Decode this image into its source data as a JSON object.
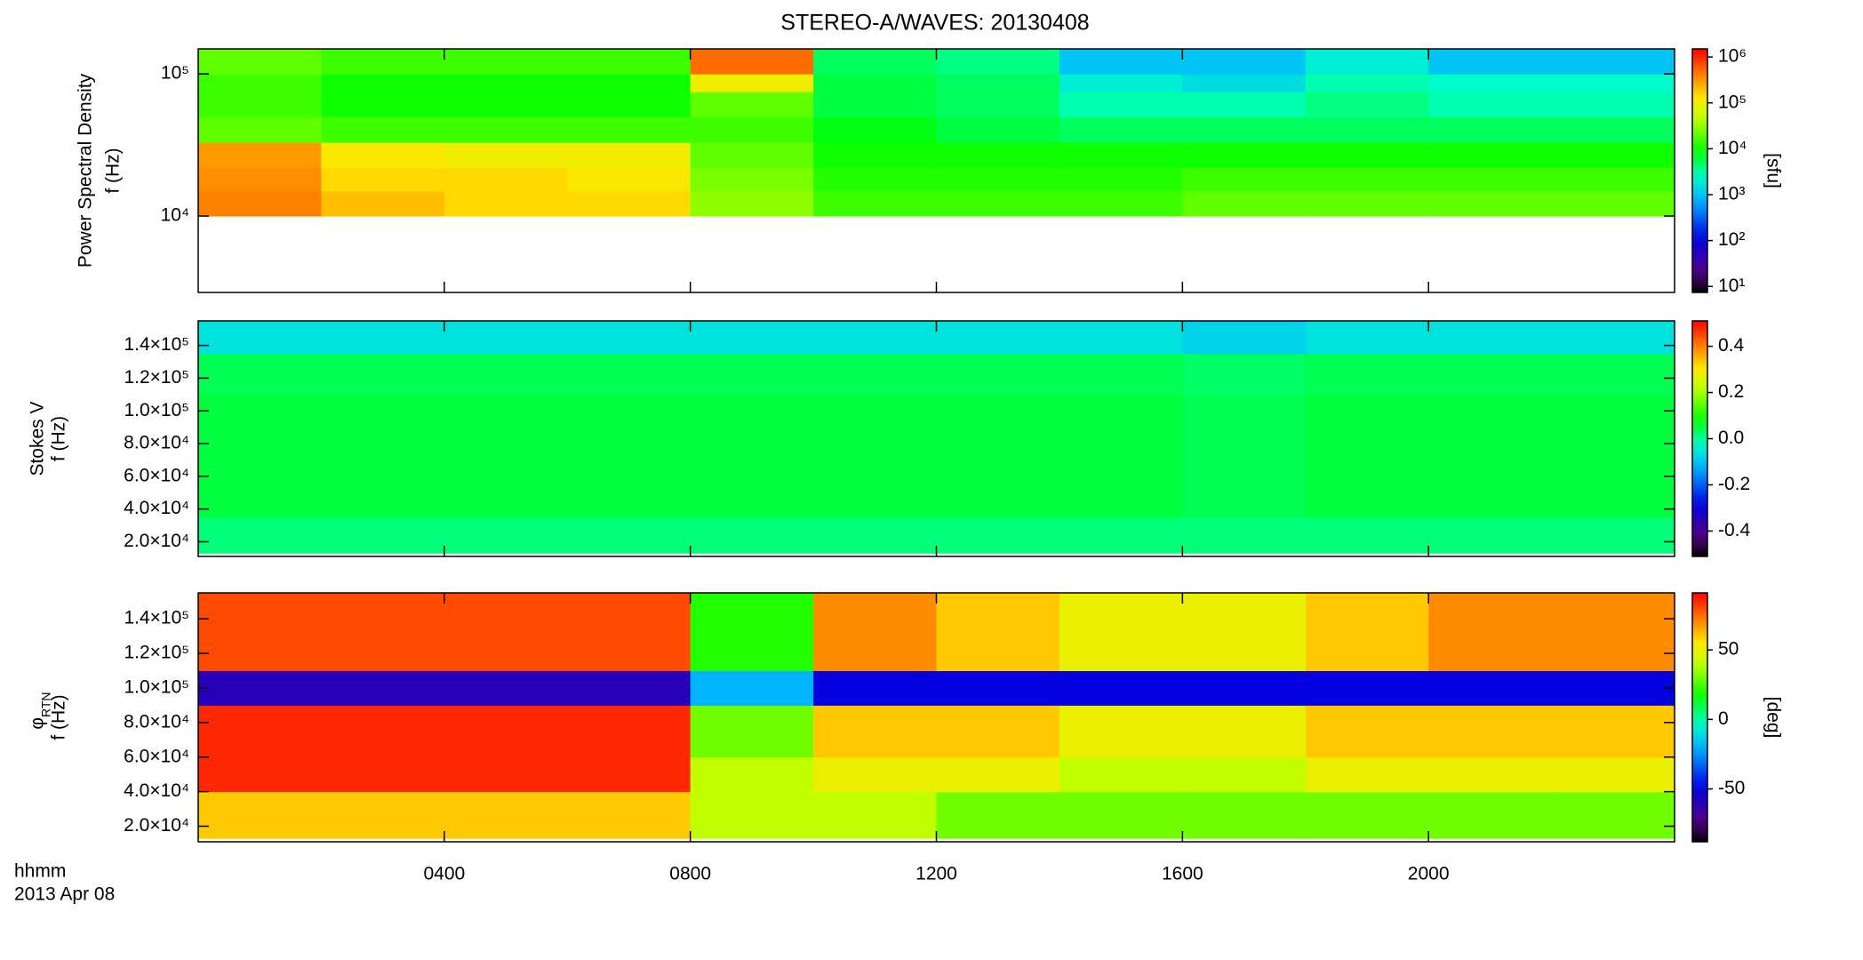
{
  "chart_data": [
    {
      "type": "spectrogram",
      "title": "STEREO-A/WAVES: 20130408",
      "ylabel": [
        "Power Spectral Density",
        "f (Hz)"
      ],
      "yscale": "log",
      "ylim": [
        2900,
        150000
      ],
      "yticks": [
        {
          "value": 10000,
          "label": "10⁴"
        },
        {
          "value": 100000,
          "label": "10⁵"
        }
      ],
      "xbins": [
        0,
        2,
        4,
        6,
        8,
        10,
        12,
        14,
        16,
        18,
        20,
        22,
        24
      ],
      "ybins": [
        10000,
        15000,
        22000,
        33000,
        50000,
        75000,
        100000,
        150000
      ],
      "z": [
        [
          400000,
          200000,
          150000,
          150000,
          30000,
          15000,
          15000,
          15000,
          20000,
          20000,
          20000,
          20000
        ],
        [
          350000,
          150000,
          150000,
          120000,
          25000,
          12000,
          12000,
          12000,
          15000,
          15000,
          15000,
          15000
        ],
        [
          300000,
          120000,
          100000,
          100000,
          20000,
          10000,
          10000,
          10000,
          10000,
          10000,
          10000,
          10000
        ],
        [
          20000,
          15000,
          15000,
          15000,
          15000,
          8000,
          6000,
          5000,
          5000,
          5000,
          5000,
          5000
        ],
        [
          15000,
          10000,
          10000,
          10000,
          20000,
          6000,
          5000,
          3000,
          3000,
          4000,
          3000,
          3000
        ],
        [
          15000,
          10000,
          10000,
          10000,
          100000,
          6000,
          5000,
          2000,
          1500,
          3000,
          2500,
          2500
        ],
        [
          20000,
          15000,
          15000,
          15000,
          500000,
          5000,
          4000,
          1000,
          1000,
          2000,
          1000,
          1000
        ]
      ],
      "zscale": "log",
      "zlim": [
        7.4,
        1500000
      ],
      "zticks": [
        {
          "value": 10,
          "label": "10¹"
        },
        {
          "value": 100,
          "label": "10²"
        },
        {
          "value": 1000,
          "label": "10³"
        },
        {
          "value": 10000,
          "label": "10⁴"
        },
        {
          "value": 100000,
          "label": "10⁵"
        },
        {
          "value": 1000000,
          "label": "10⁶"
        }
      ],
      "zlabel": "[sfu]"
    },
    {
      "type": "spectrogram",
      "ylabel": [
        "Stokes V",
        "f (Hz)"
      ],
      "ylim": [
        11000,
        155000
      ],
      "yticks": [
        {
          "value": 20000,
          "label": "2.0×10⁴"
        },
        {
          "value": 40000,
          "label": "4.0×10⁴"
        },
        {
          "value": 60000,
          "label": "6.0×10⁴"
        },
        {
          "value": 80000,
          "label": "8.0×10⁴"
        },
        {
          "value": 100000,
          "label": "1.0×10⁵"
        },
        {
          "value": 120000,
          "label": "1.2×10⁵"
        },
        {
          "value": 140000,
          "label": "1.4×10⁵"
        }
      ],
      "xbins": [
        0,
        2,
        4,
        6,
        8,
        10,
        12,
        14,
        16,
        18,
        20,
        22,
        24
      ],
      "ybins": [
        13000,
        35000,
        60000,
        85000,
        110000,
        135000,
        155000
      ],
      "z": [
        [
          0.02,
          0.02,
          0.02,
          0.02,
          0.02,
          0.02,
          0.02,
          0.02,
          0.02,
          0.02,
          0.02,
          0.02
        ],
        [
          0.05,
          0.05,
          0.05,
          0.05,
          0.05,
          0.05,
          0.05,
          0.05,
          0.04,
          0.05,
          0.05,
          0.05
        ],
        [
          0.05,
          0.05,
          0.05,
          0.05,
          0.05,
          0.05,
          0.05,
          0.05,
          0.04,
          0.05,
          0.05,
          0.05
        ],
        [
          0.05,
          0.05,
          0.05,
          0.05,
          0.05,
          0.05,
          0.05,
          0.05,
          0.04,
          0.05,
          0.05,
          0.05
        ],
        [
          0.04,
          0.04,
          0.04,
          0.04,
          0.04,
          0.04,
          0.04,
          0.04,
          0.03,
          0.04,
          0.04,
          0.04
        ],
        [
          -0.06,
          -0.06,
          -0.06,
          -0.06,
          -0.06,
          -0.06,
          -0.06,
          -0.06,
          -0.08,
          -0.06,
          -0.06,
          -0.06
        ]
      ],
      "zlim": [
        -0.51,
        0.51
      ],
      "zticks": [
        0.4,
        0.2,
        {
          "value": 0,
          "label": "0.0"
        },
        -0.2,
        -0.4
      ]
    },
    {
      "type": "spectrogram",
      "ylabel": [
        "φ",
        "f (Hz)"
      ],
      "ylabel_subscript": "RTN",
      "ylim": [
        11000,
        155000
      ],
      "yticks": [
        {
          "value": 20000,
          "label": "2.0×10⁴"
        },
        {
          "value": 40000,
          "label": "4.0×10⁴"
        },
        {
          "value": 60000,
          "label": "6.0×10⁴"
        },
        {
          "value": 80000,
          "label": "8.0×10⁴"
        },
        {
          "value": 100000,
          "label": "1.0×10⁵"
        },
        {
          "value": 120000,
          "label": "1.2×10⁵"
        },
        {
          "value": 140000,
          "label": "1.4×10⁵"
        }
      ],
      "xlim": [
        0,
        24
      ],
      "xticks": [
        {
          "value": 4,
          "label": "0400"
        },
        {
          "value": 8,
          "label": "0800"
        },
        {
          "value": 12,
          "label": "1200"
        },
        {
          "value": 16,
          "label": "1600"
        },
        {
          "value": 20,
          "label": "2000"
        }
      ],
      "xlabel": [
        "hhmm",
        "2013 Apr 08"
      ],
      "xbins": [
        0,
        2,
        4,
        6,
        8,
        10,
        12,
        14,
        16,
        18,
        20,
        22,
        24
      ],
      "ybins": [
        13000,
        40000,
        60000,
        90000,
        110000,
        155000
      ],
      "z": [
        [
          60,
          60,
          60,
          60,
          40,
          40,
          30,
          30,
          30,
          30,
          30,
          30
        ],
        [
          85,
          85,
          85,
          85,
          40,
          50,
          50,
          40,
          40,
          50,
          50,
          50
        ],
        [
          85,
          85,
          85,
          85,
          30,
          60,
          60,
          50,
          50,
          60,
          60,
          60
        ],
        [
          -60,
          -60,
          -60,
          -60,
          -20,
          -50,
          -50,
          -50,
          -50,
          -50,
          -50,
          -50
        ],
        [
          80,
          80,
          80,
          80,
          20,
          70,
          60,
          50,
          50,
          60,
          70,
          70
        ]
      ],
      "zlim": [
        -88,
        91
      ],
      "zticks": [
        50,
        0,
        -50
      ],
      "zlabel": "[deg]"
    }
  ]
}
